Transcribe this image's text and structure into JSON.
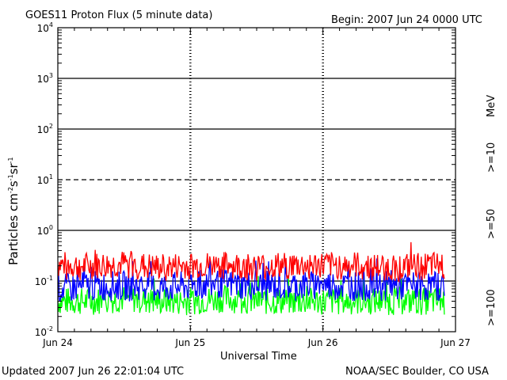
{
  "header": {
    "title": "GOES11 Proton Flux (5 minute data)",
    "begin": "Begin: 2007 Jun 24 0000 UTC"
  },
  "footer": {
    "updated": "Updated 2007 Jun 26 22:01:04 UTC",
    "credit": "NOAA/SEC Boulder, CO USA"
  },
  "colors": {
    "ge10": "#ff0000",
    "ge50": "#0000ff",
    "ge100": "#00ff00",
    "background": "#ffffff",
    "axes": "#000000"
  },
  "chart_data": {
    "type": "line",
    "title": "GOES11 Proton Flux (5 minute data)",
    "xlabel": "Universal Time",
    "ylabel": "Particles cm-2s-1sr-1",
    "y_scale": "log",
    "ylim": [
      0.01,
      10000
    ],
    "x_ticks": [
      "Jun 24",
      "Jun 25",
      "Jun 26",
      "Jun 27"
    ],
    "y_ticks": [
      {
        "base": "10",
        "exp": "-2",
        "value": 0.01
      },
      {
        "base": "10",
        "exp": "-1",
        "value": 0.1
      },
      {
        "base": "10",
        "exp": "0",
        "value": 1
      },
      {
        "base": "10",
        "exp": "1",
        "value": 10
      },
      {
        "base": "10",
        "exp": "2",
        "value": 100
      },
      {
        "base": "10",
        "exp": "3",
        "value": 1000
      },
      {
        "base": "10",
        "exp": "4",
        "value": 10000
      }
    ],
    "right_label": {
      "units": "MeV"
    },
    "series": [
      {
        "name": ">=10",
        "color": "#ff0000",
        "x_days": [
          0,
          0.25,
          0.5,
          0.75,
          1.0,
          1.25,
          1.5,
          1.75,
          2.0,
          2.25,
          2.5,
          2.75,
          2.92
        ],
        "values": [
          0.2,
          0.19,
          0.21,
          0.18,
          0.2,
          0.2,
          0.19,
          0.2,
          0.2,
          0.2,
          0.18,
          0.19,
          0.2
        ]
      },
      {
        "name": ">=50",
        "color": "#0000ff",
        "x_days": [
          0,
          0.25,
          0.5,
          0.75,
          1.0,
          1.25,
          1.5,
          1.75,
          2.0,
          2.25,
          2.5,
          2.75,
          2.92
        ],
        "values": [
          0.07,
          0.08,
          0.08,
          0.075,
          0.08,
          0.09,
          0.08,
          0.08,
          0.085,
          0.08,
          0.08,
          0.08,
          0.08
        ]
      },
      {
        "name": ">=100",
        "color": "#00ff00",
        "x_days": [
          0,
          0.25,
          0.5,
          0.75,
          1.0,
          1.25,
          1.5,
          1.75,
          2.0,
          2.25,
          2.5,
          2.75,
          2.92
        ],
        "values": [
          0.04,
          0.04,
          0.045,
          0.04,
          0.04,
          0.045,
          0.04,
          0.04,
          0.04,
          0.04,
          0.04,
          0.04,
          0.04
        ]
      }
    ]
  }
}
